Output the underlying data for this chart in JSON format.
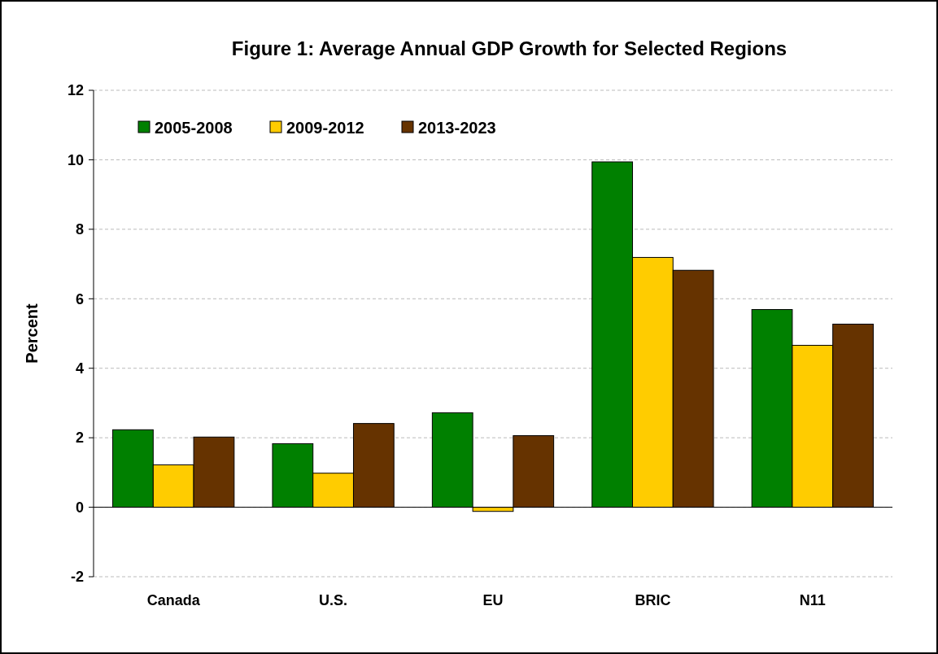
{
  "chart_data": {
    "type": "bar",
    "title": "Figure 1: Average Annual GDP Growth for Selected Regions",
    "ylabel": "Percent",
    "categories": [
      "Canada",
      "U.S.",
      "EU",
      "BRIC",
      "N11"
    ],
    "series": [
      {
        "name": "2005-2008",
        "color": "#008000",
        "values": [
          2.23,
          1.83,
          2.72,
          9.94,
          5.69
        ]
      },
      {
        "name": "2009-2012",
        "color": "#ffcc00",
        "values": [
          1.22,
          0.98,
          -0.12,
          7.19,
          4.66
        ]
      },
      {
        "name": "2013-2023",
        "color": "#663300",
        "values": [
          2.02,
          2.41,
          2.06,
          6.82,
          5.27
        ]
      }
    ],
    "ylim": [
      -2,
      12
    ],
    "yticks": [
      -2,
      0,
      2,
      4,
      6,
      8,
      10,
      12
    ],
    "grid": "y",
    "legend": "top left"
  }
}
